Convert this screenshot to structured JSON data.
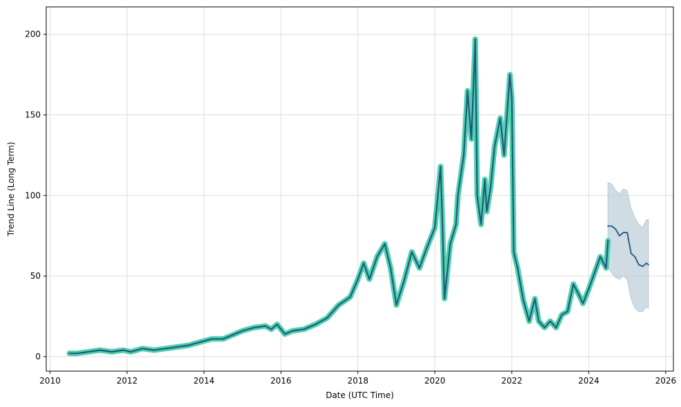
{
  "chart_data": {
    "type": "line",
    "title": "",
    "xlabel": "Date (UTC Time)",
    "ylabel": "Trend Line (Long Term)",
    "xlim": [
      2009.9,
      2026.2
    ],
    "ylim": [
      -9,
      217
    ],
    "xticks": [
      2010,
      2012,
      2014,
      2016,
      2018,
      2020,
      2022,
      2024,
      2026
    ],
    "yticks": [
      0,
      50,
      100,
      150,
      200
    ],
    "grid": true,
    "colors": {
      "history_outer": "#4fd1b0",
      "history_inner": "#23577a",
      "forecast_line": "#2e5f85",
      "forecast_band": "#b6c9d6",
      "grid": "#dcdcdc"
    },
    "series": [
      {
        "role": "history",
        "x": [
          2010.5,
          2010.7,
          2011.0,
          2011.3,
          2011.6,
          2011.9,
          2012.1,
          2012.4,
          2012.7,
          2013.0,
          2013.3,
          2013.6,
          2013.9,
          2014.2,
          2014.5,
          2014.8,
          2015.0,
          2015.3,
          2015.6,
          2015.75,
          2015.9,
          2016.1,
          2016.3,
          2016.6,
          2016.9,
          2017.2,
          2017.5,
          2017.8,
          2018.0,
          2018.15,
          2018.3,
          2018.5,
          2018.7,
          2018.85,
          2019.0,
          2019.2,
          2019.4,
          2019.6,
          2019.8,
          2020.0,
          2020.15,
          2020.2,
          2020.25,
          2020.4,
          2020.55,
          2020.6,
          2020.75,
          2020.85,
          2020.95,
          2021.05,
          2021.1,
          2021.2,
          2021.3,
          2021.35,
          2021.45,
          2021.55,
          2021.7,
          2021.8,
          2021.95,
          2022.0,
          2022.05,
          2022.15,
          2022.3,
          2022.45,
          2022.6,
          2022.7,
          2022.85,
          2023.0,
          2023.15,
          2023.3,
          2023.45,
          2023.6,
          2023.75,
          2023.85,
          2024.0,
          2024.15,
          2024.3,
          2024.45,
          2024.5
        ],
        "y": [
          2,
          2,
          3,
          4,
          3,
          4,
          3,
          5,
          4,
          5,
          6,
          7,
          9,
          11,
          11,
          14,
          16,
          18,
          19,
          17,
          20,
          14,
          16,
          17,
          20,
          24,
          32,
          37,
          48,
          58,
          48,
          62,
          70,
          55,
          32,
          47,
          65,
          55,
          68,
          80,
          118,
          80,
          36,
          70,
          82,
          100,
          125,
          165,
          135,
          197,
          100,
          82,
          110,
          90,
          105,
          130,
          148,
          125,
          175,
          160,
          65,
          55,
          35,
          22,
          36,
          22,
          18,
          22,
          18,
          26,
          28,
          45,
          38,
          33,
          42,
          52,
          62,
          55,
          72
        ]
      },
      {
        "role": "forecast",
        "x": [
          2024.5,
          2024.6,
          2024.7,
          2024.8,
          2024.9,
          2025.0,
          2025.1,
          2025.2,
          2025.3,
          2025.4,
          2025.5,
          2025.55
        ],
        "y": [
          81,
          81,
          79,
          75,
          77,
          77,
          64,
          62,
          57,
          56,
          58,
          57
        ]
      },
      {
        "role": "forecast-band-upper",
        "x": [
          2024.5,
          2024.6,
          2024.7,
          2024.8,
          2024.9,
          2025.0,
          2025.1,
          2025.2,
          2025.3,
          2025.4,
          2025.5,
          2025.55
        ],
        "y": [
          108,
          107,
          103,
          101,
          104,
          103,
          92,
          86,
          82,
          80,
          85,
          85
        ]
      },
      {
        "role": "forecast-band-lower",
        "x": [
          2024.5,
          2024.6,
          2024.7,
          2024.8,
          2024.9,
          2025.0,
          2025.1,
          2025.2,
          2025.3,
          2025.4,
          2025.5,
          2025.55
        ],
        "y": [
          55,
          52,
          49,
          48,
          50,
          48,
          36,
          30,
          28,
          28,
          31,
          30
        ]
      }
    ]
  }
}
